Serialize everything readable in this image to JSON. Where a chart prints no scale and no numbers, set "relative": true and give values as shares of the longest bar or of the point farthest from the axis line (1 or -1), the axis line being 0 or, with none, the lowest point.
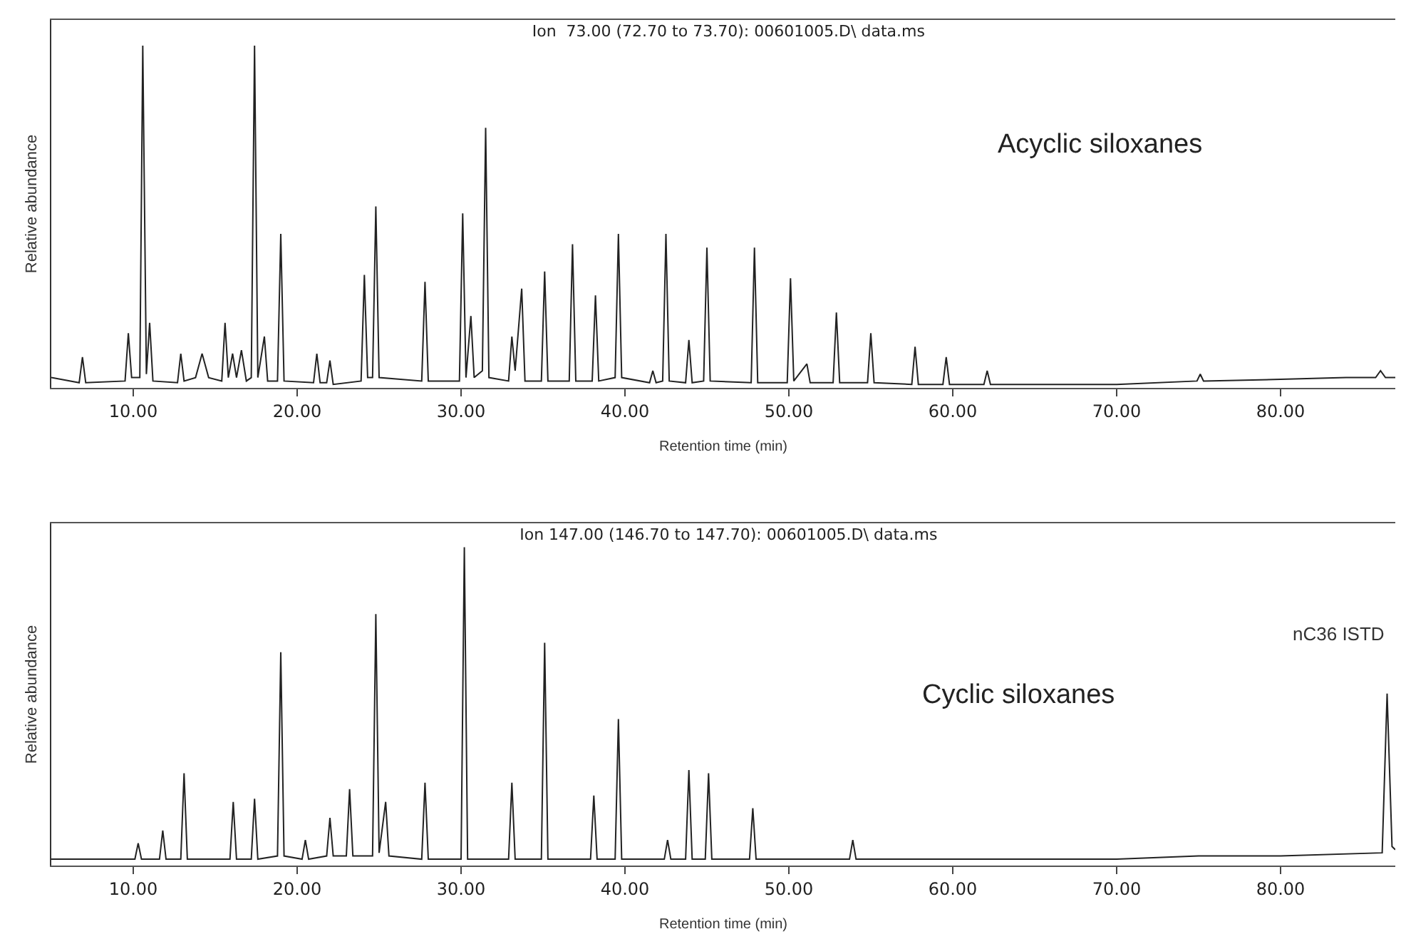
{
  "chart_data": [
    {
      "type": "line",
      "title": "Ion  73.00 (72.70 to 73.70): 00601005.D\\ data.ms",
      "xlabel": "Retention time (min)",
      "ylabel": "Relative abundance",
      "relative": true,
      "grid": false,
      "marker": "none",
      "line_style": "solid",
      "xlim": [
        5,
        87
      ],
      "xticks": [
        {
          "value": 10,
          "label": "10.00"
        },
        {
          "value": 20,
          "label": "20.00"
        },
        {
          "value": 30,
          "label": "30.00"
        },
        {
          "value": 40,
          "label": "40.00"
        },
        {
          "value": 50,
          "label": "50.00"
        },
        {
          "value": 60,
          "label": "60.00"
        },
        {
          "value": 70,
          "label": "70.00"
        },
        {
          "value": 80,
          "label": "80.00"
        }
      ],
      "annotations": [
        "Acyclic siloxanes"
      ],
      "series": [
        {
          "color": "#222222",
          "x": [
            5,
            6.7,
            6.9,
            7.1,
            9.5,
            9.7,
            9.9,
            10.4,
            10.58,
            10.8,
            11.0,
            11.2,
            12.7,
            12.9,
            13.1,
            13.8,
            14.2,
            14.6,
            15.4,
            15.6,
            15.8,
            16.06,
            16.3,
            16.6,
            16.9,
            17.2,
            17.4,
            17.6,
            18.0,
            18.2,
            18.8,
            19.0,
            19.2,
            21.0,
            21.2,
            21.4,
            21.8,
            22.0,
            22.2,
            23.9,
            24.1,
            24.3,
            24.6,
            24.8,
            25.0,
            27.6,
            27.8,
            28.0,
            29.9,
            30.1,
            30.3,
            30.6,
            30.8,
            31.3,
            31.5,
            31.7,
            32.9,
            33.1,
            33.3,
            33.7,
            33.9,
            34.9,
            35.1,
            35.3,
            36.6,
            36.8,
            37.0,
            38.0,
            38.2,
            38.4,
            39.4,
            39.6,
            39.8,
            41.5,
            41.7,
            41.9,
            42.3,
            42.5,
            42.7,
            43.7,
            43.9,
            44.1,
            44.8,
            45.0,
            45.2,
            47.7,
            47.9,
            48.1,
            49.9,
            50.1,
            50.3,
            51.1,
            51.3,
            52.7,
            52.9,
            53.1,
            54.8,
            55.0,
            55.2,
            57.5,
            57.7,
            57.9,
            59.4,
            59.6,
            59.8,
            61.9,
            62.1,
            62.3,
            70,
            74.9,
            75.1,
            75.3,
            80,
            84,
            85.8,
            86.1,
            86.4,
            87
          ],
          "values": [
            0.03,
            0.015,
            0.09,
            0.015,
            0.02,
            0.16,
            0.03,
            0.03,
            1,
            0.04,
            0.19,
            0.02,
            0.015,
            0.1,
            0.02,
            0.03,
            0.1,
            0.03,
            0.02,
            0.19,
            0.03,
            0.1,
            0.03,
            0.11,
            0.02,
            0.03,
            1,
            0.03,
            0.15,
            0.02,
            0.02,
            0.45,
            0.02,
            0.015,
            0.1,
            0.015,
            0.015,
            0.08,
            0.01,
            0.02,
            0.33,
            0.03,
            0.03,
            0.53,
            0.03,
            0.02,
            0.31,
            0.02,
            0.02,
            0.51,
            0.03,
            0.21,
            0.03,
            0.05,
            0.76,
            0.03,
            0.02,
            0.15,
            0.05,
            0.29,
            0.02,
            0.02,
            0.34,
            0.02,
            0.02,
            0.42,
            0.02,
            0.02,
            0.27,
            0.02,
            0.03,
            0.45,
            0.03,
            0.015,
            0.05,
            0.015,
            0.02,
            0.45,
            0.02,
            0.015,
            0.14,
            0.015,
            0.02,
            0.41,
            0.02,
            0.015,
            0.41,
            0.015,
            0.015,
            0.32,
            0.02,
            0.07,
            0.015,
            0.015,
            0.22,
            0.015,
            0.015,
            0.16,
            0.015,
            0.01,
            0.12,
            0.01,
            0.01,
            0.09,
            0.01,
            0.01,
            0.05,
            0.01,
            0.01,
            0.02,
            0.04,
            0.02,
            0.025,
            0.03,
            0.03,
            0.05,
            0.03,
            0.03
          ]
        }
      ]
    },
    {
      "type": "line",
      "title": "Ion 147.00 (146.70 to 147.70): 00601005.D\\ data.ms",
      "xlabel": "Retention time (min)",
      "ylabel": "Relative abundance",
      "relative": true,
      "grid": false,
      "marker": "none",
      "line_style": "solid",
      "xlim": [
        5,
        87
      ],
      "xticks": [
        {
          "value": 10,
          "label": "10.00"
        },
        {
          "value": 20,
          "label": "20.00"
        },
        {
          "value": 30,
          "label": "30.00"
        },
        {
          "value": 40,
          "label": "40.00"
        },
        {
          "value": 50,
          "label": "50.00"
        },
        {
          "value": 60,
          "label": "60.00"
        },
        {
          "value": 70,
          "label": "70.00"
        },
        {
          "value": 80,
          "label": "80.00"
        }
      ],
      "annotations": [
        "Cyclic siloxanes",
        {
          "text": "nC36 ISTD",
          "x": 86.5,
          "y": 0.54
        }
      ],
      "series": [
        {
          "color": "#222222",
          "x": [
            5,
            10.1,
            10.3,
            10.5,
            11.6,
            11.8,
            12.0,
            12.9,
            13.1,
            13.3,
            15.9,
            16.1,
            16.3,
            17.2,
            17.4,
            17.6,
            18.8,
            19.0,
            19.2,
            20.3,
            20.5,
            20.7,
            21.8,
            22.0,
            22.2,
            23.0,
            23.2,
            23.4,
            24.6,
            24.8,
            25.0,
            25.4,
            25.6,
            27.6,
            27.8,
            28.0,
            30.0,
            30.2,
            30.4,
            32.9,
            33.1,
            33.3,
            34.9,
            35.1,
            35.3,
            37.9,
            38.1,
            38.3,
            39.4,
            39.6,
            39.8,
            42.4,
            42.6,
            42.8,
            43.7,
            43.9,
            44.1,
            44.9,
            45.1,
            45.3,
            47.6,
            47.8,
            48.0,
            53.7,
            53.9,
            54.1,
            60,
            70,
            75,
            80,
            86.2,
            86.5,
            86.8,
            87
          ],
          "values": [
            0.02,
            0.02,
            0.07,
            0.02,
            0.02,
            0.11,
            0.02,
            0.02,
            0.29,
            0.02,
            0.02,
            0.2,
            0.02,
            0.02,
            0.21,
            0.02,
            0.03,
            0.67,
            0.03,
            0.02,
            0.08,
            0.02,
            0.03,
            0.15,
            0.03,
            0.03,
            0.24,
            0.03,
            0.03,
            0.79,
            0.04,
            0.2,
            0.03,
            0.02,
            0.26,
            0.02,
            0.02,
            1,
            0.02,
            0.02,
            0.26,
            0.02,
            0.02,
            0.7,
            0.02,
            0.02,
            0.22,
            0.02,
            0.02,
            0.46,
            0.02,
            0.02,
            0.08,
            0.02,
            0.02,
            0.3,
            0.02,
            0.02,
            0.29,
            0.02,
            0.02,
            0.18,
            0.02,
            0.02,
            0.08,
            0.02,
            0.02,
            0.02,
            0.03,
            0.03,
            0.04,
            0.54,
            0.06,
            0.05
          ]
        }
      ]
    }
  ]
}
